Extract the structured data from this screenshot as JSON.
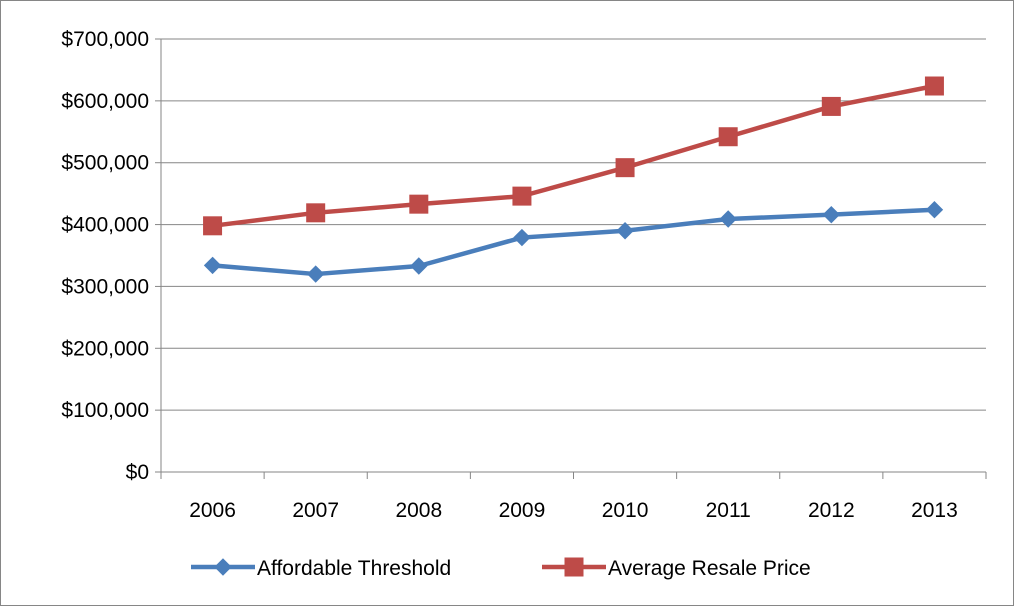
{
  "chart_data": {
    "type": "line",
    "title": "",
    "xlabel": "",
    "ylabel": "",
    "categories": [
      "2006",
      "2007",
      "2008",
      "2009",
      "2010",
      "2011",
      "2012",
      "2013"
    ],
    "ylim": [
      0,
      700000
    ],
    "yticks": [
      0,
      100000,
      200000,
      300000,
      400000,
      500000,
      600000,
      700000
    ],
    "ytick_labels": [
      "$0",
      "$100,000",
      "$200,000",
      "$300,000",
      "$400,000",
      "$500,000",
      "$600,000",
      "$700,000"
    ],
    "grid": true,
    "legend_position": "bottom",
    "series": [
      {
        "name": "Affordable Threshold",
        "values": [
          334000,
          320000,
          333000,
          379000,
          390000,
          409000,
          416000,
          424000
        ],
        "color": "#4a7ebb",
        "marker": "diamond"
      },
      {
        "name": "Average Resale Price",
        "values": [
          398000,
          419000,
          433000,
          446000,
          492000,
          542000,
          591000,
          624000
        ],
        "color": "#be4b48",
        "marker": "square"
      }
    ]
  }
}
